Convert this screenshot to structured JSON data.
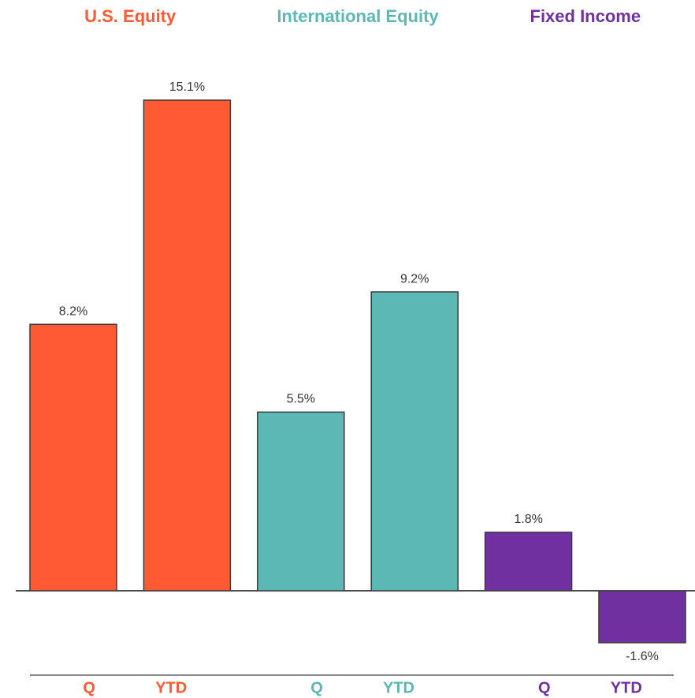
{
  "chart_data": {
    "type": "bar",
    "series": [
      {
        "name": "U.S. Equity",
        "color": "#ff5a33",
        "categories": [
          "Q",
          "YTD"
        ],
        "values": [
          8.2,
          15.1
        ],
        "value_labels": [
          "8.2%",
          "15.1%"
        ]
      },
      {
        "name": "International Equity",
        "color": "#5bb8b4",
        "categories": [
          "Q",
          "YTD"
        ],
        "values": [
          5.5,
          9.2
        ],
        "value_labels": [
          "5.5%",
          "9.2%"
        ]
      },
      {
        "name": "Fixed Income",
        "color": "#7030a0",
        "categories": [
          "Q",
          "YTD"
        ],
        "values": [
          1.8,
          -1.6
        ],
        "value_labels": [
          "1.8%",
          "-1.6%"
        ]
      }
    ]
  }
}
